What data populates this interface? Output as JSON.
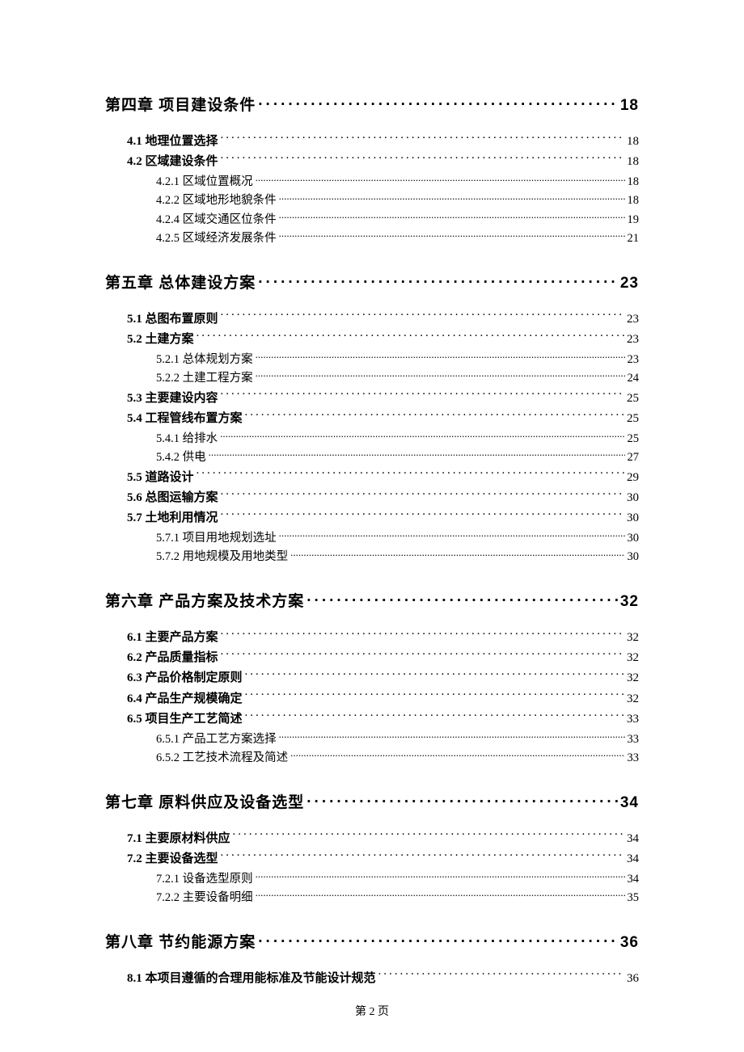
{
  "footer": "第 2 页",
  "toc": [
    {
      "level": 1,
      "title": "第四章 项目建设条件",
      "page": "18"
    },
    {
      "level": 2,
      "title": "4.1 地理位置选择",
      "page": "18"
    },
    {
      "level": 2,
      "title": "4.2 区域建设条件",
      "page": "18"
    },
    {
      "level": 3,
      "title": "4.2.1 区域位置概况",
      "page": "18"
    },
    {
      "level": 3,
      "title": "4.2.2 区域地形地貌条件",
      "page": "18"
    },
    {
      "level": 3,
      "title": "4.2.4 区域交通区位条件",
      "page": "19"
    },
    {
      "level": 3,
      "title": "4.2.5 区域经济发展条件",
      "page": "21"
    },
    {
      "level": 1,
      "title": "第五章 总体建设方案",
      "page": "23"
    },
    {
      "level": 2,
      "title": "5.1 总图布置原则",
      "page": "23"
    },
    {
      "level": 2,
      "title": "5.2 土建方案",
      "page": "23"
    },
    {
      "level": 3,
      "title": "5.2.1 总体规划方案",
      "page": "23"
    },
    {
      "level": 3,
      "title": "5.2.2 土建工程方案",
      "page": "24"
    },
    {
      "level": 2,
      "title": "5.3 主要建设内容",
      "page": "25"
    },
    {
      "level": 2,
      "title": "5.4 工程管线布置方案",
      "page": "25"
    },
    {
      "level": 3,
      "title": "5.4.1 给排水",
      "page": "25"
    },
    {
      "level": 3,
      "title": "5.4.2 供电",
      "page": "27"
    },
    {
      "level": 2,
      "title": "5.5 道路设计",
      "page": "29"
    },
    {
      "level": 2,
      "title": "5.6 总图运输方案",
      "page": "30"
    },
    {
      "level": 2,
      "title": "5.7 土地利用情况",
      "page": "30"
    },
    {
      "level": 3,
      "title": "5.7.1 项目用地规划选址",
      "page": "30"
    },
    {
      "level": 3,
      "title": "5.7.2 用地规模及用地类型",
      "page": "30"
    },
    {
      "level": 1,
      "title": "第六章 产品方案及技术方案",
      "page": "32"
    },
    {
      "level": 2,
      "title": "6.1 主要产品方案",
      "page": "32"
    },
    {
      "level": 2,
      "title": "6.2 产品质量指标",
      "page": "32"
    },
    {
      "level": 2,
      "title": "6.3 产品价格制定原则",
      "page": "32"
    },
    {
      "level": 2,
      "title": "6.4 产品生产规模确定",
      "page": "32"
    },
    {
      "level": 2,
      "title": "6.5 项目生产工艺简述",
      "page": "33"
    },
    {
      "level": 3,
      "title": "6.5.1 产品工艺方案选择",
      "page": "33"
    },
    {
      "level": 3,
      "title": "6.5.2 工艺技术流程及简述",
      "page": "33"
    },
    {
      "level": 1,
      "title": "第七章 原料供应及设备选型",
      "page": "34"
    },
    {
      "level": 2,
      "title": "7.1 主要原材料供应",
      "page": "34"
    },
    {
      "level": 2,
      "title": "7.2 主要设备选型",
      "page": "34"
    },
    {
      "level": 3,
      "title": "7.2.1 设备选型原则",
      "page": "34"
    },
    {
      "level": 3,
      "title": "7.2.2 主要设备明细",
      "page": "35"
    },
    {
      "level": 1,
      "title": "第八章 节约能源方案",
      "page": "36"
    },
    {
      "level": 2,
      "title": "8.1 本项目遵循的合理用能标准及节能设计规范",
      "page": "36"
    }
  ]
}
